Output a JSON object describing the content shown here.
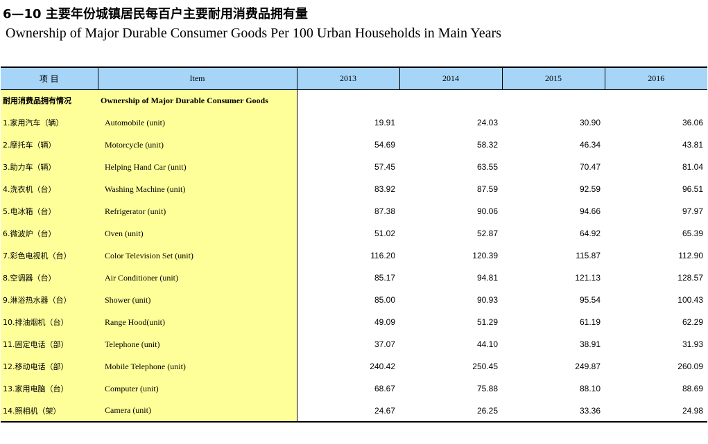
{
  "title": {
    "cn": "6—10  主要年份城镇居民每百户主要耐用消费品拥有量",
    "en": "Ownership of Major Durable Consumer Goods Per 100 Urban Households  in Main Years"
  },
  "table": {
    "header": {
      "item_cn": "项  目",
      "item_en": "Item",
      "years": [
        "2013",
        "2014",
        "2015",
        "2016"
      ]
    },
    "section": {
      "cn": "耐用消费品拥有情况",
      "en": "Ownership of Major Durable Consumer Goods"
    },
    "rows": [
      {
        "cn": "1.家用汽车（辆）",
        "en": "Automobile (unit)",
        "values": [
          "19.91",
          "24.03",
          "30.90",
          "36.06"
        ]
      },
      {
        "cn": "2.摩托车（辆）",
        "en": "Motorcycle (unit)",
        "values": [
          "54.69",
          "58.32",
          "46.34",
          "43.81"
        ]
      },
      {
        "cn": "3.助力车（辆）",
        "en": "Helping Hand Car (unit)",
        "values": [
          "57.45",
          "63.55",
          "70.47",
          "81.04"
        ]
      },
      {
        "cn": "4.洗衣机（台）",
        "en": "Washing Machine (unit)",
        "values": [
          "83.92",
          "87.59",
          "92.59",
          "96.51"
        ]
      },
      {
        "cn": "5.电冰箱（台）",
        "en": "Refrigerator (unit)",
        "values": [
          "87.38",
          "90.06",
          "94.66",
          "97.97"
        ]
      },
      {
        "cn": "6.微波炉（台）",
        "en": "Oven (unit)",
        "values": [
          "51.02",
          "52.87",
          "64.92",
          "65.39"
        ]
      },
      {
        "cn": "7.彩色电视机（台）",
        "en": "Color Television Set (unit)",
        "values": [
          "116.20",
          "120.39",
          "115.87",
          "112.90"
        ]
      },
      {
        "cn": "8.空调器（台）",
        "en": "Air Conditioner (unit)",
        "values": [
          "85.17",
          "94.81",
          "121.13",
          "128.57"
        ]
      },
      {
        "cn": "9.淋浴热水器（台）",
        "en": "Shower (unit)",
        "values": [
          "85.00",
          "90.93",
          "95.54",
          "100.43"
        ]
      },
      {
        "cn": "10.排油烟机（台）",
        "en": "Range Hood(unit)",
        "values": [
          "49.09",
          "51.29",
          "61.19",
          "62.29"
        ]
      },
      {
        "cn": "11.固定电话（部）",
        "en": "Telephone (unit)",
        "values": [
          "37.07",
          "44.10",
          "38.91",
          "31.93"
        ]
      },
      {
        "cn": "12.移动电话（部）",
        "en": "Mobile Telephone (unit)",
        "values": [
          "240.42",
          "250.45",
          "249.87",
          "260.09"
        ]
      },
      {
        "cn": "13.家用电脑（台）",
        "en": "Computer (unit)",
        "values": [
          "68.67",
          "75.88",
          "88.10",
          "88.69"
        ]
      },
      {
        "cn": "14.照相机（架）",
        "en": "Camera (unit)",
        "values": [
          "24.67",
          "26.25",
          "33.36",
          "24.98"
        ]
      }
    ]
  },
  "colors": {
    "header_bg": "#a6d5f7",
    "item_bg": "#ffff99"
  }
}
